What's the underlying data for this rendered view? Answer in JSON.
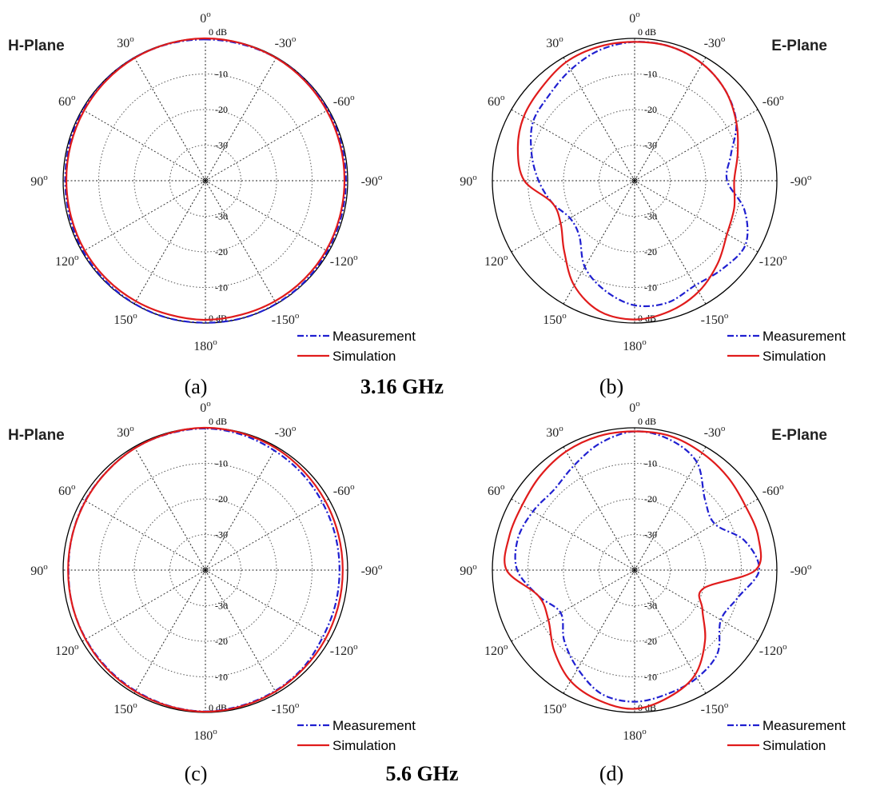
{
  "chart_data": [
    {
      "type": "polar-line",
      "panel_label": "(a)",
      "plane_label": "H-Plane",
      "r_unit_label": "0 dB",
      "r_tick_labels": [
        "-10",
        "-20",
        "-30"
      ],
      "r_range": [
        -40,
        0
      ],
      "angle_tick_labels": [
        "0°",
        "30°",
        "60°",
        "90°",
        "120°",
        "150°",
        "180°",
        "-150°",
        "-120°",
        "-90°",
        "-60°",
        "-30°"
      ],
      "angle_tick_display": [
        {
          "base": "0",
          "sup": "o"
        },
        {
          "base": "30",
          "sup": "o"
        },
        {
          "base": "60",
          "sup": "o"
        },
        {
          "base": "90",
          "sup": "o"
        },
        {
          "base": "120",
          "sup": "o"
        },
        {
          "base": "150",
          "sup": "o"
        },
        {
          "base": "180",
          "sup": "o"
        },
        {
          "base": "-150",
          "sup": "o"
        },
        {
          "base": "-120",
          "sup": "o"
        },
        {
          "base": "-90",
          "sup": "o"
        },
        {
          "base": "-60",
          "sup": "o"
        },
        {
          "base": "-30",
          "sup": "o"
        }
      ],
      "legend": [
        "Measurement",
        "Simulation"
      ],
      "legend_placement": "bottom-right",
      "series": [
        {
          "name": "Measurement",
          "color": "#1f1fd0",
          "dash": "dash-dot",
          "angles_deg": [
            0,
            15,
            30,
            45,
            60,
            75,
            90,
            105,
            120,
            135,
            150,
            165,
            180,
            195,
            210,
            225,
            240,
            255,
            270,
            285,
            300,
            315,
            330,
            345
          ],
          "values_db": [
            -0.3,
            -0.2,
            -0.1,
            -0.2,
            -0.3,
            -0.4,
            -0.6,
            -0.5,
            -0.3,
            -0.2,
            -0.1,
            0.0,
            -0.1,
            0.0,
            -0.1,
            -0.2,
            -0.4,
            -0.5,
            -0.5,
            -0.4,
            -0.3,
            -0.2,
            -0.2,
            -0.3
          ]
        },
        {
          "name": "Simulation",
          "color": "#e01b1b",
          "dash": "solid",
          "angles_deg": [
            0,
            15,
            30,
            45,
            60,
            75,
            90,
            105,
            120,
            135,
            150,
            165,
            180,
            195,
            210,
            225,
            240,
            255,
            270,
            285,
            300,
            315,
            330,
            345
          ],
          "values_db": [
            0.0,
            -0.1,
            -0.2,
            -0.4,
            -0.6,
            -0.8,
            -0.9,
            -0.9,
            -0.8,
            -0.8,
            -0.9,
            -1.0,
            -0.9,
            -1.0,
            -0.9,
            -0.8,
            -0.8,
            -0.9,
            -0.9,
            -0.8,
            -0.6,
            -0.4,
            -0.2,
            -0.1
          ]
        }
      ]
    },
    {
      "type": "polar-line",
      "panel_label": "(b)",
      "plane_label": "E-Plane",
      "r_unit_label": "0 dB",
      "r_tick_labels": [
        "-10",
        "-20",
        "-30"
      ],
      "r_range": [
        -40,
        0
      ],
      "angle_tick_labels": [
        "0°",
        "30°",
        "60°",
        "90°",
        "120°",
        "150°",
        "180°",
        "-150°",
        "-120°",
        "-90°",
        "-60°",
        "-30°"
      ],
      "angle_tick_display": [
        {
          "base": "0",
          "sup": "o"
        },
        {
          "base": "30",
          "sup": "o"
        },
        {
          "base": "60",
          "sup": "o"
        },
        {
          "base": "90",
          "sup": "o"
        },
        {
          "base": "120",
          "sup": "o"
        },
        {
          "base": "150",
          "sup": "o"
        },
        {
          "base": "180",
          "sup": "o"
        },
        {
          "base": "-150",
          "sup": "o"
        },
        {
          "base": "-120",
          "sup": "o"
        },
        {
          "base": "-90",
          "sup": "o"
        },
        {
          "base": "-60",
          "sup": "o"
        },
        {
          "base": "-30",
          "sup": "o"
        }
      ],
      "legend": [
        "Measurement",
        "Simulation"
      ],
      "legend_placement": "bottom-right",
      "series": [
        {
          "name": "Measurement",
          "color": "#1f1fd0",
          "dash": "dash-dot",
          "angles_deg": [
            0,
            15,
            30,
            45,
            60,
            75,
            90,
            105,
            120,
            135,
            150,
            165,
            180,
            195,
            210,
            225,
            240,
            255,
            270,
            285,
            300,
            315,
            330,
            345
          ],
          "values_db": [
            -1.0,
            -2.0,
            -4.0,
            -6.0,
            -7.0,
            -10.0,
            -13.0,
            -16.0,
            -19.0,
            -18.0,
            -12.0,
            -8.0,
            -5.0,
            -4.5,
            -6.0,
            -5.0,
            -4.0,
            -8.0,
            -14.0,
            -12.0,
            -7.0,
            -4.0,
            -2.0,
            -1.0
          ]
        },
        {
          "name": "Simulation",
          "color": "#e01b1b",
          "dash": "solid",
          "angles_deg": [
            0,
            15,
            30,
            45,
            60,
            75,
            90,
            105,
            120,
            135,
            150,
            165,
            180,
            195,
            210,
            225,
            240,
            255,
            270,
            285,
            300,
            315,
            330,
            345
          ],
          "values_db": [
            -1.0,
            -1.0,
            -1.5,
            -3.0,
            -4.0,
            -6.0,
            -9.0,
            -16.0,
            -16.0,
            -12.0,
            -6.0,
            -2.0,
            -1.0,
            -2.0,
            -4.0,
            -7.0,
            -10.0,
            -11.0,
            -12.0,
            -10.0,
            -7.0,
            -4.0,
            -2.0,
            -1.0
          ]
        }
      ]
    },
    {
      "type": "polar-line",
      "panel_label": "(c)",
      "plane_label": "H-Plane",
      "r_unit_label": "0 dB",
      "r_tick_labels": [
        "-10",
        "-20",
        "-30"
      ],
      "r_range": [
        -40,
        0
      ],
      "angle_tick_labels": [
        "0°",
        "30°",
        "60°",
        "90°",
        "120°",
        "150°",
        "180°",
        "-150°",
        "-120°",
        "-90°",
        "-60°",
        "-30°"
      ],
      "angle_tick_display": [
        {
          "base": "0",
          "sup": "o"
        },
        {
          "base": "30",
          "sup": "o"
        },
        {
          "base": "60",
          "sup": "o"
        },
        {
          "base": "90",
          "sup": "o"
        },
        {
          "base": "120",
          "sup": "o"
        },
        {
          "base": "150",
          "sup": "o"
        },
        {
          "base": "180",
          "sup": "o"
        },
        {
          "base": "-150",
          "sup": "o"
        },
        {
          "base": "-120",
          "sup": "o"
        },
        {
          "base": "-90",
          "sup": "o"
        },
        {
          "base": "-60",
          "sup": "o"
        },
        {
          "base": "-30",
          "sup": "o"
        }
      ],
      "legend": [
        "Measurement",
        "Simulation"
      ],
      "legend_placement": "bottom-right",
      "series": [
        {
          "name": "Measurement",
          "color": "#1f1fd0",
          "dash": "dash-dot",
          "angles_deg": [
            0,
            15,
            30,
            45,
            60,
            75,
            90,
            105,
            120,
            135,
            150,
            165,
            180,
            195,
            210,
            225,
            240,
            255,
            270,
            285,
            300,
            315,
            330,
            345
          ],
          "values_db": [
            -0.2,
            -0.3,
            -0.4,
            -0.8,
            -1.0,
            -1.3,
            -1.5,
            -1.3,
            -1.2,
            -1.0,
            -0.8,
            -0.5,
            -0.3,
            -0.6,
            -0.8,
            -1.2,
            -2.0,
            -2.2,
            -2.3,
            -2.2,
            -2.0,
            -1.6,
            -1.2,
            -0.6
          ]
        },
        {
          "name": "Simulation",
          "color": "#e01b1b",
          "dash": "solid",
          "angles_deg": [
            0,
            15,
            30,
            45,
            60,
            75,
            90,
            105,
            120,
            135,
            150,
            165,
            180,
            195,
            210,
            225,
            240,
            255,
            270,
            285,
            300,
            315,
            330,
            345
          ],
          "values_db": [
            0.0,
            -0.2,
            -0.4,
            -0.8,
            -1.1,
            -1.3,
            -1.4,
            -1.3,
            -1.1,
            -0.8,
            -0.6,
            -0.4,
            -0.2,
            -0.4,
            -0.6,
            -0.9,
            -1.1,
            -1.3,
            -1.4,
            -1.3,
            -1.1,
            -0.8,
            -0.4,
            -0.2
          ]
        }
      ]
    },
    {
      "type": "polar-line",
      "panel_label": "(d)",
      "plane_label": "E-Plane",
      "r_unit_label": "0 dB",
      "r_tick_labels": [
        "-10",
        "-20",
        "-30"
      ],
      "r_range": [
        -40,
        0
      ],
      "angle_tick_labels": [
        "0°",
        "30°",
        "60°",
        "90°",
        "120°",
        "150°",
        "180°",
        "-150°",
        "-120°",
        "-90°",
        "-60°",
        "-30°"
      ],
      "angle_tick_display": [
        {
          "base": "0",
          "sup": "o"
        },
        {
          "base": "30",
          "sup": "o"
        },
        {
          "base": "60",
          "sup": "o"
        },
        {
          "base": "90",
          "sup": "o"
        },
        {
          "base": "120",
          "sup": "o"
        },
        {
          "base": "150",
          "sup": "o"
        },
        {
          "base": "180",
          "sup": "o"
        },
        {
          "base": "-150",
          "sup": "o"
        },
        {
          "base": "-120",
          "sup": "o"
        },
        {
          "base": "-90",
          "sup": "o"
        },
        {
          "base": "-60",
          "sup": "o"
        },
        {
          "base": "-30",
          "sup": "o"
        }
      ],
      "legend": [
        "Measurement",
        "Simulation"
      ],
      "legend_placement": "bottom-right",
      "series": [
        {
          "name": "Measurement",
          "color": "#1f1fd0",
          "dash": "dash-dot",
          "angles_deg": [
            0,
            15,
            30,
            45,
            60,
            75,
            90,
            105,
            120,
            135,
            150,
            165,
            180,
            195,
            210,
            225,
            240,
            255,
            270,
            285,
            300,
            315,
            330,
            345
          ],
          "values_db": [
            -1.0,
            -3.0,
            -6.0,
            -8.0,
            -7.0,
            -6.0,
            -7.0,
            -12.0,
            -16.0,
            -12.0,
            -8.0,
            -4.0,
            -3.0,
            -4.0,
            -5.0,
            -7.0,
            -12.0,
            -10.0,
            -5.0,
            -8.0,
            -14.0,
            -12.0,
            -5.0,
            -2.0
          ]
        },
        {
          "name": "Simulation",
          "color": "#e01b1b",
          "dash": "solid",
          "angles_deg": [
            0,
            15,
            30,
            45,
            60,
            75,
            90,
            105,
            120,
            135,
            150,
            165,
            180,
            195,
            210,
            225,
            240,
            255,
            270,
            285,
            300,
            315,
            330,
            345
          ],
          "values_db": [
            -1.0,
            -1.0,
            -1.5,
            -2.5,
            -3.5,
            -3.5,
            -4.0,
            -12.0,
            -12.0,
            -8.0,
            -4.0,
            -2.0,
            -1.0,
            -3.0,
            -6.0,
            -12.0,
            -18.0,
            -20.0,
            -6.0,
            -4.0,
            -4.0,
            -3.0,
            -2.0,
            -1.0
          ]
        }
      ]
    }
  ],
  "frequency_labels": [
    {
      "text": "3.16 GHz",
      "row": 1
    },
    {
      "text": "5.6 GHz",
      "row": 2
    }
  ]
}
